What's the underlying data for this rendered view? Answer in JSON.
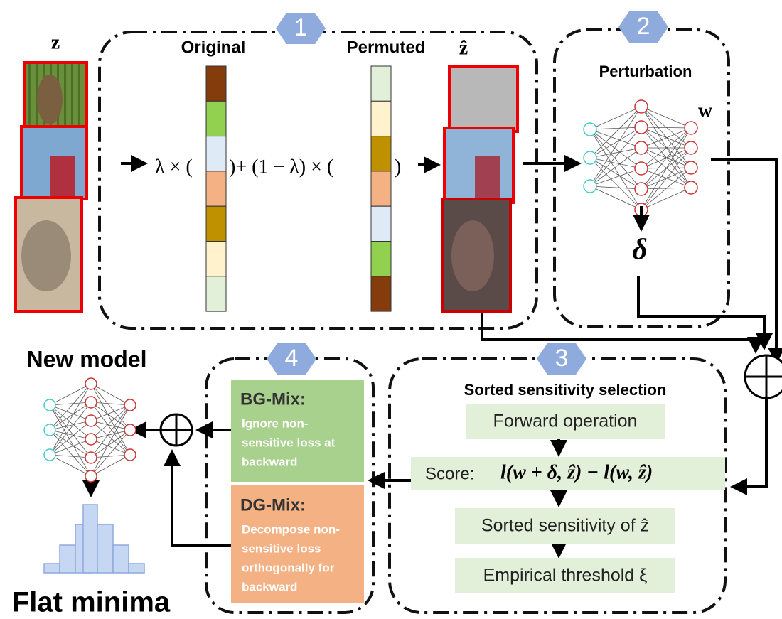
{
  "badges": [
    "1",
    "2",
    "3",
    "4"
  ],
  "input_label": "z",
  "mix": {
    "original": "Original",
    "permuted": "Permuted",
    "output_label": "ẑ",
    "formula_a": "λ × (",
    "formula_b": ")+ (1 − λ) × (",
    "formula_c": ")"
  },
  "perturbation": {
    "title": "Perturbation",
    "weights": "w",
    "delta": "δ"
  },
  "selection": {
    "title": "Sorted sensitivity selection",
    "forward": "Forward operation",
    "score_label": "Score:",
    "score_formula": "l(w + δ, ẑ) − l(w, ẑ)",
    "sorted": "Sorted sensitivity of ẑ",
    "threshold": "Empirical threshold ξ"
  },
  "bg_mix": {
    "title": "BG-Mix:",
    "lines": [
      "Ignore non-",
      "sensitive loss at",
      "backward"
    ]
  },
  "dg_mix": {
    "title": "DG-Mix:",
    "lines": [
      "Decompose non-",
      "sensitive loss",
      "orthogonally for",
      "backward"
    ]
  },
  "new_model": "New model",
  "flat_minima": "Flat minima"
}
